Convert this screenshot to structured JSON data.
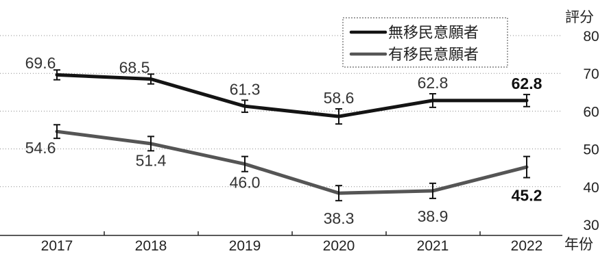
{
  "chart_data": {
    "type": "line",
    "categories": [
      "2017",
      "2018",
      "2019",
      "2020",
      "2021",
      "2022"
    ],
    "series": [
      {
        "name": "無移民意願者",
        "values": [
          69.6,
          68.5,
          61.3,
          58.6,
          62.8,
          62.8
        ],
        "color": "#141414"
      },
      {
        "name": "有移民意願者",
        "values": [
          54.6,
          51.4,
          46.0,
          38.3,
          38.9,
          45.2
        ],
        "color": "#555555"
      }
    ],
    "value_labels": [
      [
        "69.6",
        "68.5",
        "61.3",
        "58.6",
        "62.8",
        "62.8"
      ],
      [
        "54.6",
        "51.4",
        "46.0",
        "38.3",
        "38.9",
        "45.2"
      ]
    ],
    "error_half": [
      [
        1.3,
        1.3,
        1.6,
        2.0,
        1.8,
        1.6
      ],
      [
        1.8,
        1.9,
        2.0,
        2.0,
        2.0,
        2.8
      ]
    ],
    "ylabel": "評分",
    "xlabel": "年份",
    "yticks": [
      30,
      40,
      50,
      60,
      70,
      80
    ],
    "ylim": [
      30,
      80
    ],
    "grid": "dotted horizontal",
    "legend_position": "top-right"
  }
}
